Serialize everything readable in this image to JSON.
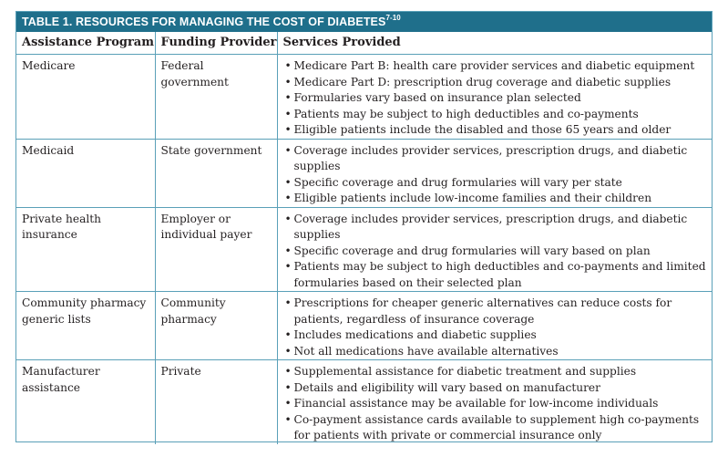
{
  "title": {
    "text": "TABLE 1. RESOURCES FOR MANAGING THE COST OF DIABETES",
    "superscript": "7-10"
  },
  "headers": [
    "Assistance Program",
    "Funding Provider",
    "Services Provided"
  ],
  "rows": [
    {
      "program": "Medicare",
      "provider": "Federal government",
      "services": [
        "Medicare Part B: health care provider services and diabetic equipment",
        "Medicare Part D: prescription drug coverage and diabetic supplies",
        "Formularies vary based on insurance plan selected",
        "Patients may be subject to high deductibles and co-payments",
        "Eligible patients include the disabled and those 65 years and older"
      ]
    },
    {
      "program": "Medicaid",
      "provider": "State government",
      "services": [
        "Coverage includes provider services, prescription drugs, and diabetic supplies",
        "Specific coverage and drug formularies will vary per state",
        "Eligible patients include low-income families and their children"
      ]
    },
    {
      "program": "Private health insurance",
      "provider": "Employer or individual payer",
      "services": [
        "Coverage includes provider services, prescription drugs, and diabetic supplies",
        "Specific coverage and drug formularies will vary based on plan",
        "Patients may be subject to high deductibles and co-payments and limited formularies based on their selected plan"
      ]
    },
    {
      "program": "Community pharmacy generic lists",
      "provider": "Community pharmacy",
      "services": [
        "Prescriptions for cheaper generic alternatives can reduce costs for patients, regardless of insurance coverage",
        "Includes medications and diabetic supplies",
        "Not all medications have available alternatives"
      ]
    },
    {
      "program": "Manufacturer assistance",
      "provider": "Private",
      "services": [
        "Supplemental assistance for diabetic treatment and supplies",
        "Details and eligibility will vary based on manufacturer",
        "Financial assistance may be available for low-income individuals",
        "Co-payment assistance cards available to supplement high co-payments for patients with private or commercial insurance only"
      ]
    }
  ],
  "colors": {
    "title_bar": "#1f6f8b",
    "rule": "#5aa0b8",
    "text": "#231f20"
  }
}
